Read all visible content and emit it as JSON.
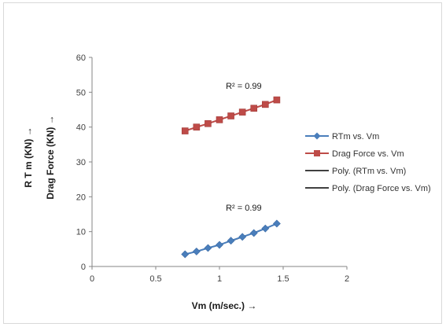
{
  "chart_data": {
    "type": "scatter",
    "xlabel": "Vm (m/sec.)  →",
    "ylabel": "Drag Force (KN)  →",
    "ylabel2": "R T m (KN)  →",
    "xlim": [
      0,
      2
    ],
    "ylim": [
      0,
      60
    ],
    "x_ticks": [
      "0",
      "0.5",
      "1",
      "1.5",
      "2"
    ],
    "y_ticks": [
      "0",
      "10",
      "20",
      "30",
      "40",
      "50",
      "60"
    ],
    "grid": false,
    "legend_position": "right",
    "series": [
      {
        "name": "RTm vs. Vm",
        "marker": "diamond",
        "color": "#4a7ebb",
        "x": [
          0.73,
          0.82,
          0.91,
          1.0,
          1.09,
          1.18,
          1.27,
          1.36,
          1.45
        ],
        "y": [
          3.5,
          4.3,
          5.3,
          6.2,
          7.4,
          8.5,
          9.6,
          10.9,
          12.3
        ]
      },
      {
        "name": "Drag Force vs. Vm",
        "marker": "square",
        "color": "#be4b48",
        "x": [
          0.73,
          0.82,
          0.91,
          1.0,
          1.09,
          1.18,
          1.27,
          1.36,
          1.45
        ],
        "y": [
          38.9,
          40.0,
          41.0,
          42.1,
          43.2,
          44.3,
          45.4,
          46.5,
          47.8
        ]
      }
    ],
    "trendlines": [
      {
        "name": "Poly. (RTm vs. Vm)",
        "of_series": 0,
        "color": "#000000"
      },
      {
        "name": "Poly. (Drag Force vs. Vm)",
        "of_series": 1,
        "color": "#000000"
      }
    ],
    "annotations": [
      {
        "text": "R² = 0.99",
        "x": 1.05,
        "y": 51.0
      },
      {
        "text": "R² = 0.99",
        "x": 1.05,
        "y": 16.0
      }
    ]
  }
}
